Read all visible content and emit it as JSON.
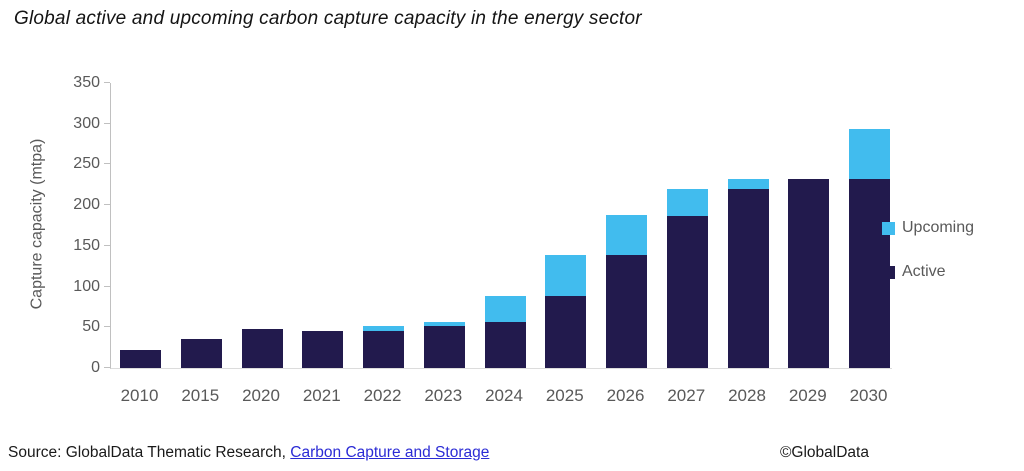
{
  "title": "Global active and upcoming carbon capture capacity in the energy sector",
  "chart_data": {
    "type": "bar",
    "stacked": true,
    "title": "Global active and upcoming carbon capture capacity in the energy sector",
    "xlabel": "",
    "ylabel": "Capture capacity (mtpa)",
    "ylim": [
      0,
      350
    ],
    "yticks": [
      0,
      50,
      100,
      150,
      200,
      250,
      300,
      350
    ],
    "grid": false,
    "legend_position": "right",
    "categories": [
      "2010",
      "2015",
      "2020",
      "2021",
      "2022",
      "2023",
      "2024",
      "2025",
      "2026",
      "2027",
      "2028",
      "2029",
      "2030"
    ],
    "series": [
      {
        "name": "Active",
        "color": "#221a4d",
        "values": [
          22,
          36,
          48,
          46,
          46,
          52,
          56,
          89,
          139,
          187,
          220,
          232,
          232
        ]
      },
      {
        "name": "Upcoming",
        "color": "#41bcee",
        "values": [
          0,
          0,
          0,
          0,
          5,
          5,
          33,
          50,
          49,
          33,
          12,
          0,
          62
        ]
      }
    ]
  },
  "legend": {
    "items": [
      {
        "label": "Upcoming",
        "color": "#41bcee"
      },
      {
        "label": "Active",
        "color": "#221a4d"
      }
    ]
  },
  "footer": {
    "source_prefix": "Source: GlobalData Thematic Research, ",
    "source_link": "Carbon Capture and Storage",
    "copyright": "©GlobalData"
  },
  "colors": {
    "active_bar": "#221a4d",
    "upcoming_bar": "#41bcee",
    "axis_line": "#c0c0c0",
    "axis_text": "#595959",
    "link": "#2b2bd5"
  }
}
